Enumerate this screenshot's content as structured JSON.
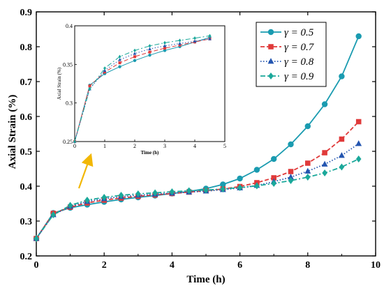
{
  "chart_data": {
    "type": "line",
    "xlabel": "Time (h)",
    "ylabel": "Axial Strain (%)",
    "xlim": [
      0,
      10
    ],
    "ylim": [
      0.2,
      0.9
    ],
    "xticks": [
      "0",
      "2",
      "4",
      "6",
      "8",
      "10"
    ],
    "yticks": [
      "0.2",
      "0.3",
      "0.4",
      "0.5",
      "0.6",
      "0.7",
      "0.8",
      "0.9"
    ],
    "legend_position": "top-right",
    "x": [
      0,
      0.5,
      1,
      1.5,
      2,
      2.5,
      3,
      3.5,
      4,
      4.5,
      5,
      5.5,
      6,
      6.5,
      7,
      7.5,
      8,
      8.5,
      9,
      9.5
    ],
    "series": [
      {
        "name": "γ = 0.5",
        "color": "#1a9bb0",
        "marker": "circle",
        "dash": "solid",
        "values": [
          0.25,
          0.323,
          0.338,
          0.347,
          0.355,
          0.362,
          0.368,
          0.373,
          0.379,
          0.385,
          0.393,
          0.405,
          0.422,
          0.447,
          0.478,
          0.52,
          0.572,
          0.635,
          0.715,
          0.83
        ]
      },
      {
        "name": "γ = 0.7",
        "color": "#e03a3a",
        "marker": "square",
        "dash": "dashed",
        "values": [
          0.25,
          0.322,
          0.34,
          0.352,
          0.36,
          0.366,
          0.371,
          0.375,
          0.379,
          0.383,
          0.387,
          0.392,
          0.399,
          0.41,
          0.424,
          0.442,
          0.466,
          0.496,
          0.535,
          0.585
        ]
      },
      {
        "name": "γ = 0.8",
        "color": "#2456b0",
        "marker": "triangle",
        "dash": "dotted",
        "values": [
          0.25,
          0.318,
          0.342,
          0.356,
          0.364,
          0.37,
          0.374,
          0.377,
          0.38,
          0.383,
          0.386,
          0.39,
          0.395,
          0.402,
          0.413,
          0.426,
          0.443,
          0.463,
          0.488,
          0.522
        ]
      },
      {
        "name": "γ = 0.9",
        "color": "#1aa89a",
        "marker": "diamond",
        "dash": "dashdot",
        "values": [
          0.25,
          0.318,
          0.345,
          0.36,
          0.368,
          0.374,
          0.378,
          0.381,
          0.384,
          0.387,
          0.389,
          0.392,
          0.396,
          0.401,
          0.408,
          0.416,
          0.426,
          0.438,
          0.455,
          0.478
        ]
      }
    ],
    "inset": {
      "xlabel": "Time (h)",
      "ylabel": "Axial Strain (%)",
      "xlim": [
        0,
        5
      ],
      "ylim": [
        0.25,
        0.4
      ],
      "xticks": [
        "0",
        "1",
        "2",
        "3",
        "4",
        "5"
      ],
      "yticks": [
        "0.25",
        "0.3",
        "0.35",
        "0.4"
      ]
    }
  }
}
